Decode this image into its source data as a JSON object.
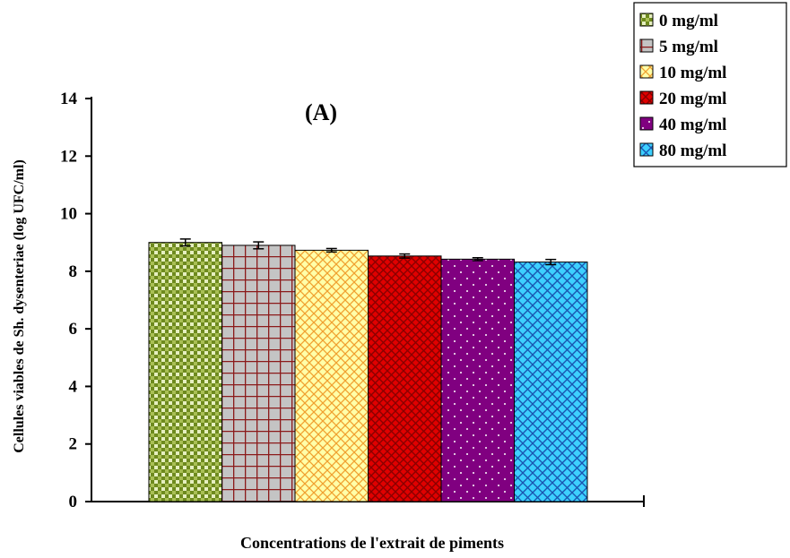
{
  "chart_data": {
    "type": "bar",
    "panel_label": "(A)",
    "xlabel": "Concentrations de l'extrait de piments",
    "ylabel": "Cellules viables de Sh. dysenteriae  (log UFC/ml)",
    "ylim": [
      0,
      14
    ],
    "yticks": [
      0,
      2,
      4,
      6,
      8,
      10,
      12,
      14
    ],
    "legend_position": "top-right",
    "series": [
      {
        "name": "0 mg/ml",
        "value": 9.0,
        "error": 0.12,
        "color": "#8aa23a",
        "pattern": "checker-green"
      },
      {
        "name": "5 mg/ml",
        "value": 8.9,
        "error": 0.12,
        "color": "#c0c0c0",
        "pattern": "grid-maroon"
      },
      {
        "name": "10 mg/ml",
        "value": 8.73,
        "error": 0.06,
        "color": "#ffff99",
        "pattern": "diamond-orange"
      },
      {
        "name": "20 mg/ml",
        "value": 8.53,
        "error": 0.07,
        "color": "#e00000",
        "pattern": "diamond-darkred"
      },
      {
        "name": "40 mg/ml",
        "value": 8.42,
        "error": 0.05,
        "color": "#800080",
        "pattern": "dots-white"
      },
      {
        "name": "80 mg/ml",
        "value": 8.32,
        "error": 0.09,
        "color": "#33ccff",
        "pattern": "cross-blue"
      }
    ]
  }
}
